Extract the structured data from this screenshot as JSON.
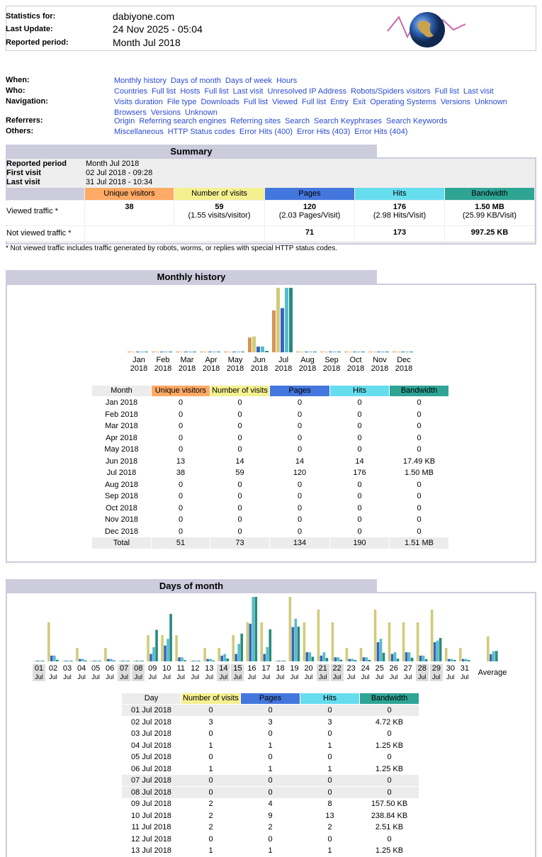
{
  "colors": [
    "#ffaa66",
    "#f4f090",
    "#4477dd",
    "#66ddee",
    "#2ea495"
  ],
  "header": {
    "rows": [
      {
        "label": "Statistics for:",
        "value": "dabiyone.com"
      },
      {
        "label": "Last Update:",
        "value": "24 Nov 2025 - 05:04"
      },
      {
        "label": "Reported period:",
        "value": "Month Jul 2018"
      }
    ]
  },
  "nav": [
    {
      "label": "When:",
      "links": [
        "Monthly history",
        "Days of month",
        "Days of week",
        "Hours"
      ]
    },
    {
      "label": "Who:",
      "links": [
        "Countries",
        "Full list",
        "Hosts",
        "Full list",
        "Last visit",
        "Unresolved IP Address",
        "Robots/Spiders visitors",
        "Full list",
        "Last visit"
      ]
    },
    {
      "label": "Navigation:",
      "links": [
        "Visits duration",
        "File type",
        "Downloads",
        "Full list",
        "Viewed",
        "Full list",
        "Entry",
        "Exit",
        "Operating Systems",
        "Versions",
        "Unknown",
        "Browsers",
        "Versions",
        "Unknown"
      ]
    },
    {
      "label": "Referrers:",
      "links": [
        "Origin",
        "Referring search engines",
        "Referring sites",
        "Search",
        "Search Keyphrases",
        "Search Keywords"
      ]
    },
    {
      "label": "Others:",
      "links": [
        "Miscellaneous",
        "HTTP Status codes",
        "Error Hits (400)",
        "Error Hits (403)",
        "Error Hits (404)"
      ]
    }
  ],
  "summary": {
    "title": "Summary",
    "info": [
      [
        "Reported period",
        "Month Jul 2018"
      ],
      [
        "First visit",
        "02 Jul 2018 - 09:28"
      ],
      [
        "Last visit",
        "31 Jul 2018 - 10:34"
      ]
    ],
    "columns": [
      "Unique visitors",
      "Number of visits",
      "Pages",
      "Hits",
      "Bandwidth"
    ],
    "rows": [
      {
        "label": "Viewed traffic *",
        "cells": [
          38,
          59,
          120,
          176,
          "1.50 MB"
        ],
        "subs": [
          null,
          "(1.55 visits/visitor)",
          "(2.03 Pages/Visit)",
          "(2.98 Hits/Visit)",
          "(25.99 KB/Visit)"
        ]
      },
      {
        "label": "Not viewed traffic *",
        "cells": [
          null,
          null,
          71,
          173,
          "997.25 KB"
        ]
      }
    ],
    "note": "* Not viewed traffic includes traffic generated by robots, worms, or replies with special HTTP status codes."
  },
  "monthly": {
    "title": "Monthly history",
    "columns": [
      "Month",
      "Unique visitors",
      "Number of visits",
      "Pages",
      "Hits",
      "Bandwidth"
    ],
    "rows": [
      [
        "Jan 2018",
        0,
        0,
        0,
        0,
        0
      ],
      [
        "Feb 2018",
        0,
        0,
        0,
        0,
        0
      ],
      [
        "Mar 2018",
        0,
        0,
        0,
        0,
        0
      ],
      [
        "Apr 2018",
        0,
        0,
        0,
        0,
        0
      ],
      [
        "May 2018",
        0,
        0,
        0,
        0,
        0
      ],
      [
        "Jun 2018",
        13,
        14,
        14,
        14,
        {
          "value": 17.49,
          "label": "17.49 KB"
        }
      ],
      [
        "Jul 2018",
        38,
        59,
        120,
        176,
        {
          "value": 1536,
          "label": "1.50 MB"
        }
      ],
      [
        "Aug 2018",
        0,
        0,
        0,
        0,
        0
      ],
      [
        "Sep 2018",
        0,
        0,
        0,
        0,
        0
      ],
      [
        "Oct 2018",
        0,
        0,
        0,
        0,
        0
      ],
      [
        "Nov 2018",
        0,
        0,
        0,
        0,
        0
      ],
      [
        "Dec 2018",
        0,
        0,
        0,
        0,
        0
      ]
    ],
    "total": [
      "Total",
      51,
      73,
      134,
      190,
      {
        "value": 1546.24,
        "label": "1.51 MB"
      }
    ]
  },
  "days_of_month": {
    "title": "Days of month",
    "chart": {
      "days": [
        {
          "day": "01",
          "month": "Jul",
          "weekend": true
        },
        {
          "day": "02",
          "month": "Jul"
        },
        {
          "day": "03",
          "month": "Jul"
        },
        {
          "day": "04",
          "month": "Jul"
        },
        {
          "day": "05",
          "month": "Jul"
        },
        {
          "day": "06",
          "month": "Jul"
        },
        {
          "day": "07",
          "month": "Jul",
          "weekend": true
        },
        {
          "day": "08",
          "month": "Jul",
          "weekend": true
        },
        {
          "day": "09",
          "month": "Jul"
        },
        {
          "day": "10",
          "month": "Jul"
        },
        {
          "day": "11",
          "month": "Jul"
        },
        {
          "day": "12",
          "month": "Jul"
        },
        {
          "day": "13",
          "month": "Jul"
        },
        {
          "day": "14",
          "month": "Jul",
          "weekend": true
        },
        {
          "day": "15",
          "month": "Jul",
          "weekend": true
        },
        {
          "day": "16",
          "month": "Jul"
        },
        {
          "day": "17",
          "month": "Jul"
        },
        {
          "day": "18",
          "month": "Jul"
        },
        {
          "day": "19",
          "month": "Jul"
        },
        {
          "day": "20",
          "month": "Jul"
        },
        {
          "day": "21",
          "month": "Jul",
          "weekend": true
        },
        {
          "day": "22",
          "month": "Jul",
          "weekend": true
        },
        {
          "day": "23",
          "month": "Jul"
        },
        {
          "day": "24",
          "month": "Jul"
        },
        {
          "day": "25",
          "month": "Jul"
        },
        {
          "day": "26",
          "month": "Jul"
        },
        {
          "day": "27",
          "month": "Jul"
        },
        {
          "day": "28",
          "month": "Jul",
          "weekend": true
        },
        {
          "day": "29",
          "month": "Jul",
          "weekend": true
        },
        {
          "day": "30",
          "month": "Jul"
        },
        {
          "day": "31",
          "month": "Jul"
        }
      ],
      "series": [
        {
          "values": [
            0,
            3,
            0,
            1,
            0,
            1,
            0,
            0,
            2,
            2,
            2,
            0,
            1,
            1,
            2,
            3,
            3,
            0,
            5,
            3,
            4,
            3,
            1,
            1,
            4,
            3,
            3,
            3,
            4,
            1,
            1
          ]
        },
        {
          "values": [
            0,
            3,
            0,
            1,
            0,
            1,
            0,
            0,
            4,
            9,
            2,
            0,
            1,
            3,
            4,
            22,
            4,
            0,
            20,
            5,
            3,
            2,
            1,
            2,
            11,
            4,
            5,
            3,
            11,
            1,
            1
          ]
        },
        {
          "values": [
            0,
            3,
            0,
            1,
            0,
            1,
            0,
            0,
            8,
            13,
            2,
            0,
            1,
            4,
            10,
            38,
            8,
            0,
            25,
            5,
            5,
            2,
            1,
            2,
            13,
            5,
            5,
            3,
            12,
            1,
            1
          ]
        },
        {
          "values": [
            0,
            4.72,
            0,
            1.25,
            0,
            1.25,
            0,
            0,
            157.5,
            238.84,
            2.51,
            0,
            1.25,
            11,
            138,
            326,
            160,
            0,
            174,
            20,
            14,
            5,
            3,
            4,
            40,
            10,
            15,
            8,
            116,
            3,
            3
          ]
        }
      ],
      "average": {
        "label": "Average",
        "values": [
          1.9,
          3.87,
          5.68,
          49.5
        ]
      }
    },
    "table": {
      "columns": [
        "Day",
        "Number of visits",
        "Pages",
        "Hits",
        "Bandwidth"
      ],
      "rows": [
        {
          "cells": [
            "01 Jul 2018",
            0,
            0,
            0,
            0
          ],
          "weekend": true
        },
        {
          "cells": [
            "02 Jul 2018",
            3,
            3,
            3,
            {
              "value": 4.72,
              "label": "4.72 KB"
            }
          ]
        },
        {
          "cells": [
            "03 Jul 2018",
            0,
            0,
            0,
            0
          ]
        },
        {
          "cells": [
            "04 Jul 2018",
            1,
            1,
            1,
            {
              "value": 1.25,
              "label": "1.25 KB"
            }
          ]
        },
        {
          "cells": [
            "05 Jul 2018",
            0,
            0,
            0,
            0
          ]
        },
        {
          "cells": [
            "06 Jul 2018",
            1,
            1,
            1,
            {
              "value": 1.25,
              "label": "1.25 KB"
            }
          ]
        },
        {
          "cells": [
            "07 Jul 2018",
            0,
            0,
            0,
            0
          ],
          "weekend": true
        },
        {
          "cells": [
            "08 Jul 2018",
            0,
            0,
            0,
            0
          ],
          "weekend": true
        },
        {
          "cells": [
            "09 Jul 2018",
            2,
            4,
            8,
            {
              "value": 157.5,
              "label": "157.50 KB"
            }
          ]
        },
        {
          "cells": [
            "10 Jul 2018",
            2,
            9,
            13,
            {
              "value": 238.84,
              "label": "238.84 KB"
            }
          ]
        },
        {
          "cells": [
            "11 Jul 2018",
            2,
            2,
            2,
            {
              "value": 2.51,
              "label": "2.51 KB"
            }
          ]
        },
        {
          "cells": [
            "12 Jul 2018",
            0,
            0,
            0,
            0
          ]
        },
        {
          "cells": [
            "13 Jul 2018",
            1,
            1,
            1,
            {
              "value": 1.25,
              "label": "1.25 KB"
            }
          ]
        }
      ]
    }
  }
}
